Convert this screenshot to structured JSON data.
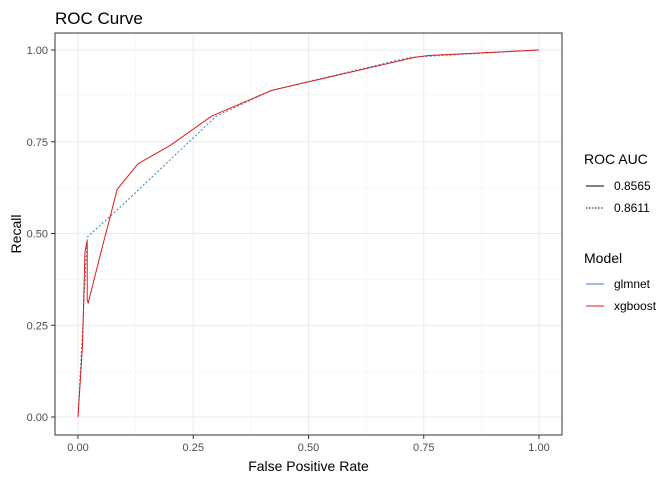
{
  "chart_data": {
    "type": "line",
    "title": "ROC Curve",
    "xlabel": "False Positive Rate",
    "ylabel": "Recall",
    "xlim": [
      0,
      1
    ],
    "ylim": [
      0,
      1
    ],
    "xticks": [
      0,
      0.25,
      0.5,
      0.75,
      1
    ],
    "xtick_labels": [
      "0.00",
      "0.25",
      "0.50",
      "0.75",
      "1.00"
    ],
    "yticks": [
      0,
      0.25,
      0.5,
      0.75,
      1
    ],
    "ytick_labels": [
      "0.00",
      "0.25",
      "0.50",
      "0.75",
      "1.00"
    ],
    "grid": true,
    "legend_position": "right",
    "legends": [
      {
        "title": "ROC AUC",
        "entries": [
          {
            "label": "0.8565",
            "linetype": "solid"
          },
          {
            "label": "0.8611",
            "linetype": "dotted"
          }
        ]
      },
      {
        "title": "Model",
        "entries": [
          {
            "label": "glmnet",
            "color": "#377eb8"
          },
          {
            "label": "xgboost",
            "color": "#e41a1c"
          }
        ]
      }
    ],
    "series": [
      {
        "name": "glmnet",
        "color": "#377eb8",
        "linetype": "dotted",
        "x": [
          0,
          0.01,
          0.02,
          0.09,
          0.3,
          0.42,
          0.72,
          1.0
        ],
        "y": [
          0,
          0.24,
          0.49,
          0.57,
          0.82,
          0.89,
          0.98,
          1.0
        ]
      },
      {
        "name": "xgboost",
        "color": "#e41a1c",
        "linetype": "solid",
        "x": [
          0,
          0.01,
          0.015,
          0.02,
          0.02,
          0.022,
          0.05,
          0.085,
          0.13,
          0.2,
          0.29,
          0.42,
          0.73,
          0.76,
          1.0
        ],
        "y": [
          0,
          0.2,
          0.45,
          0.48,
          0.32,
          0.31,
          0.45,
          0.62,
          0.69,
          0.74,
          0.82,
          0.89,
          0.98,
          0.985,
          1.0
        ]
      }
    ]
  }
}
